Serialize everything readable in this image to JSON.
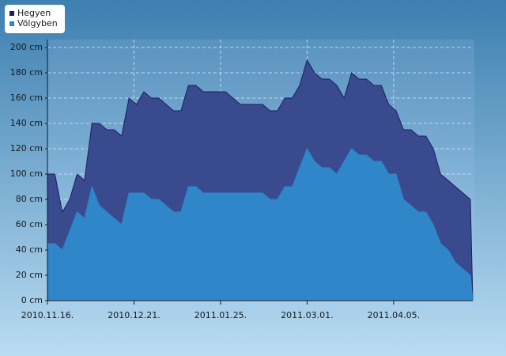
{
  "chart_data": {
    "type": "area",
    "x": [
      "2010-11-16",
      "2010-11-19",
      "2010-11-22",
      "2010-11-25",
      "2010-11-28",
      "2010-12-01",
      "2010-12-04",
      "2010-12-07",
      "2010-12-10",
      "2010-12-13",
      "2010-12-16",
      "2010-12-19",
      "2010-12-22",
      "2010-12-25",
      "2010-12-28",
      "2010-12-31",
      "2011-01-03",
      "2011-01-06",
      "2011-01-09",
      "2011-01-12",
      "2011-01-15",
      "2011-01-18",
      "2011-01-21",
      "2011-01-24",
      "2011-01-27",
      "2011-01-30",
      "2011-02-02",
      "2011-02-05",
      "2011-02-08",
      "2011-02-11",
      "2011-02-14",
      "2011-02-17",
      "2011-02-20",
      "2011-02-23",
      "2011-02-26",
      "2011-03-01",
      "2011-03-04",
      "2011-03-07",
      "2011-03-10",
      "2011-03-13",
      "2011-03-16",
      "2011-03-19",
      "2011-03-22",
      "2011-03-25",
      "2011-03-28",
      "2011-03-31",
      "2011-04-03",
      "2011-04-06",
      "2011-04-09",
      "2011-04-12",
      "2011-04-15",
      "2011-04-18",
      "2011-04-21",
      "2011-04-24",
      "2011-04-27",
      "2011-04-30",
      "2011-05-03",
      "2011-05-06",
      "2011-05-07"
    ],
    "series": [
      {
        "name": "Hegyen",
        "color": "#3a4a8e",
        "legend_color": "#1a1f5c",
        "values": [
          100,
          100,
          70,
          80,
          100,
          95,
          140,
          140,
          135,
          135,
          130,
          160,
          155,
          165,
          160,
          160,
          155,
          150,
          150,
          170,
          170,
          165,
          165,
          165,
          165,
          160,
          155,
          155,
          155,
          155,
          150,
          150,
          160,
          160,
          170,
          190,
          180,
          175,
          175,
          170,
          160,
          180,
          175,
          175,
          170,
          170,
          155,
          150,
          135,
          135,
          130,
          130,
          120,
          100,
          95,
          90,
          85,
          80,
          0
        ]
      },
      {
        "name": "Völgyben",
        "color": "#2f86c9",
        "legend_color": "#2f86c9",
        "values": [
          45,
          45,
          40,
          55,
          70,
          65,
          90,
          75,
          70,
          65,
          60,
          85,
          85,
          85,
          80,
          80,
          75,
          70,
          70,
          90,
          90,
          85,
          85,
          85,
          85,
          85,
          85,
          85,
          85,
          85,
          80,
          80,
          90,
          90,
          105,
          120,
          110,
          105,
          105,
          100,
          110,
          120,
          115,
          115,
          110,
          110,
          100,
          100,
          80,
          75,
          70,
          70,
          60,
          45,
          40,
          30,
          25,
          20,
          0
        ]
      }
    ],
    "xlim": [
      "2010-11-16",
      "2011-05-07"
    ],
    "xticks": [
      {
        "value": "2010-11-16",
        "label": "2010.11.16."
      },
      {
        "value": "2010-12-21",
        "label": "2010.12.21."
      },
      {
        "value": "2011-01-25",
        "label": "2011.01.25."
      },
      {
        "value": "2011-03-01",
        "label": "2011.03.01."
      },
      {
        "value": "2011-04-05",
        "label": "2011.04.05."
      }
    ],
    "ylim": [
      0,
      200
    ],
    "yticks": [
      {
        "value": 0,
        "label": "0 cm"
      },
      {
        "value": 20,
        "label": "20 cm"
      },
      {
        "value": 40,
        "label": "40 cm"
      },
      {
        "value": 60,
        "label": "60 cm"
      },
      {
        "value": 80,
        "label": "80 cm"
      },
      {
        "value": 100,
        "label": "100 cm"
      },
      {
        "value": 120,
        "label": "120 cm"
      },
      {
        "value": 140,
        "label": "140 cm"
      },
      {
        "value": 160,
        "label": "160 cm"
      },
      {
        "value": 180,
        "label": "180 cm"
      },
      {
        "value": 200,
        "label": "200 cm"
      }
    ],
    "grid": true
  }
}
